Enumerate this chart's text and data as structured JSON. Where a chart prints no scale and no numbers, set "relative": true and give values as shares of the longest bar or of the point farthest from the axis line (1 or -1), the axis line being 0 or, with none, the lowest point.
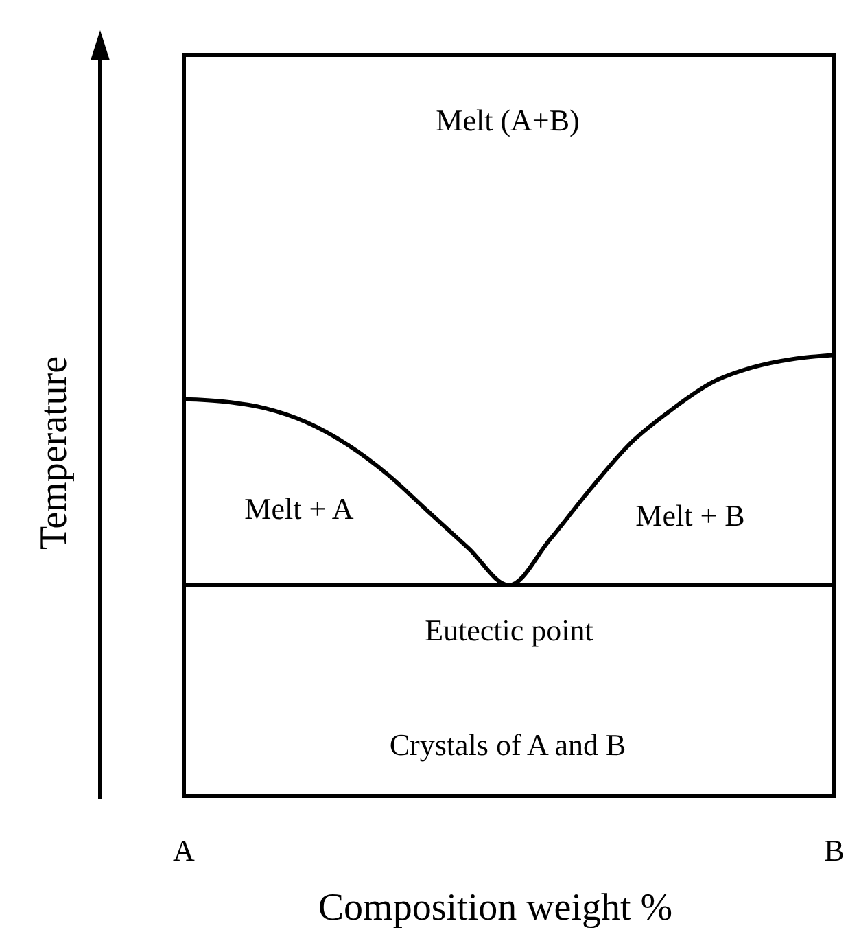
{
  "chart_data": {
    "type": "line",
    "relative": true,
    "xlabel": "Composition weight %",
    "ylabel": "Temperature",
    "categories": [
      "A",
      null,
      null,
      null,
      null,
      null,
      null,
      null,
      null,
      null,
      null,
      null,
      null,
      null,
      null,
      null,
      "B"
    ],
    "series": [
      {
        "color": "#000000",
        "values": [
          0.9,
          0.894,
          0.879,
          0.848,
          0.798,
          0.73,
          0.646,
          0.562,
          0.478,
          0.581,
          0.696,
          0.801,
          0.876,
          0.938,
          0.972,
          0.991,
          1
        ]
      }
    ],
    "ref_lines": [
      {
        "axis": "y",
        "value": 0.478,
        "label": "Eutectic point",
        "color": "#000000",
        "line_style": "solid"
      }
    ],
    "annotations": [
      "Melt (A+B)",
      "Melt + A",
      "Melt + B",
      "Crystals of A and B"
    ],
    "marker": "none",
    "line_style": "solid"
  }
}
